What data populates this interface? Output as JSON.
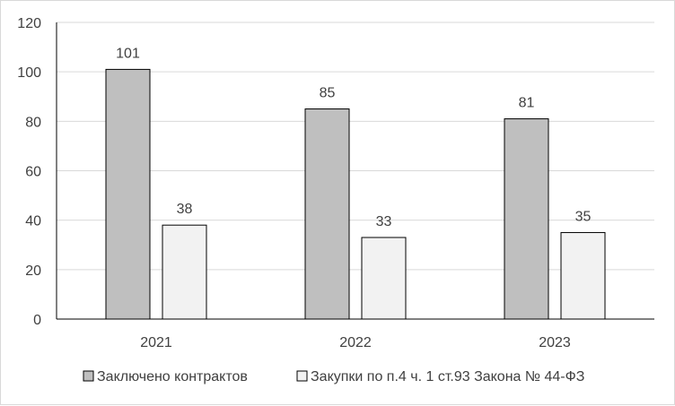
{
  "chart_data": {
    "type": "bar",
    "title": "",
    "xlabel": "",
    "ylabel": "",
    "categories": [
      "2021",
      "2022",
      "2023"
    ],
    "series": [
      {
        "name": "Заключено контрактов",
        "values": [
          101,
          85,
          81
        ],
        "color": "#bfbfbf"
      },
      {
        "name": "Закупки по п.4 ч. 1 ст.93 Закона № 44-ФЗ",
        "values": [
          38,
          33,
          35
        ],
        "color": "#f2f2f2"
      }
    ],
    "ylim": [
      0,
      120
    ],
    "yticks": [
      "0",
      "20",
      "40",
      "60",
      "80",
      "100",
      "120"
    ],
    "grid": true,
    "legend": "bottom",
    "data_labels": true,
    "gridline_color": "#d9d9d9",
    "bar_outline_color": "#000000"
  }
}
